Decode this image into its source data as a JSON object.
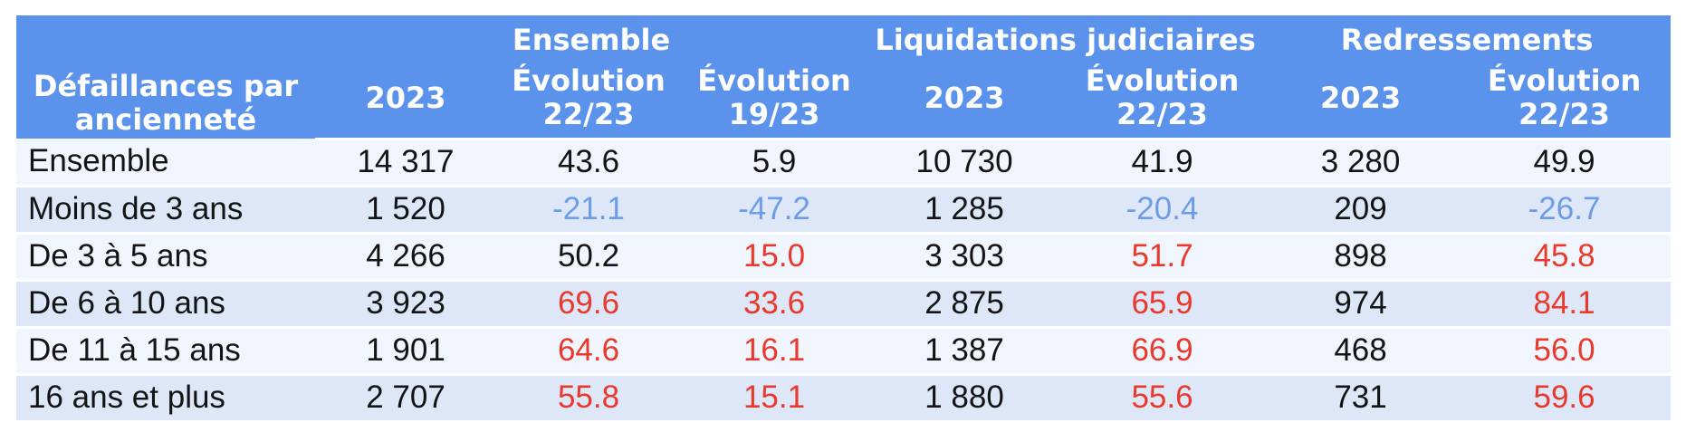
{
  "colors": {
    "header_bg": "#5B92EC",
    "row_light": "#F1F5FD",
    "row_shaded": "#DDE7F8",
    "k": "#141414",
    "r": "#E8392C",
    "b": "#6D9CE6"
  },
  "table": {
    "corner_header": "Défaillances par\nancienneté",
    "groups": [
      {
        "label": "Ensemble"
      },
      {
        "label": "Liquidations judiciaires"
      },
      {
        "label": "Redressements"
      }
    ],
    "columns": [
      "2023",
      "Évolution\n22/23",
      "Évolution\n19/23",
      "2023",
      "Évolution\n22/23",
      "2023",
      "Évolution\n22/23"
    ],
    "rows": [
      {
        "label": "Ensemble",
        "cells": [
          {
            "v": "14 317",
            "c": "k"
          },
          {
            "v": "43.6",
            "c": "k"
          },
          {
            "v": "5.9",
            "c": "k"
          },
          {
            "v": "10 730",
            "c": "k"
          },
          {
            "v": "41.9",
            "c": "k"
          },
          {
            "v": "3 280",
            "c": "k"
          },
          {
            "v": "49.9",
            "c": "k"
          }
        ]
      },
      {
        "label": "Moins de 3 ans",
        "cells": [
          {
            "v": "1 520",
            "c": "k"
          },
          {
            "v": "-21.1",
            "c": "b"
          },
          {
            "v": "-47.2",
            "c": "b"
          },
          {
            "v": "1 285",
            "c": "k"
          },
          {
            "v": "-20.4",
            "c": "b"
          },
          {
            "v": "209",
            "c": "k"
          },
          {
            "v": "-26.7",
            "c": "b"
          }
        ]
      },
      {
        "label": "De 3 à 5 ans",
        "cells": [
          {
            "v": "4 266",
            "c": "k"
          },
          {
            "v": "50.2",
            "c": "k"
          },
          {
            "v": "15.0",
            "c": "r"
          },
          {
            "v": "3 303",
            "c": "k"
          },
          {
            "v": "51.7",
            "c": "r"
          },
          {
            "v": "898",
            "c": "k"
          },
          {
            "v": "45.8",
            "c": "r"
          }
        ]
      },
      {
        "label": "De 6 à 10 ans",
        "cells": [
          {
            "v": "3 923",
            "c": "k"
          },
          {
            "v": "69.6",
            "c": "r"
          },
          {
            "v": "33.6",
            "c": "r"
          },
          {
            "v": "2 875",
            "c": "k"
          },
          {
            "v": "65.9",
            "c": "r"
          },
          {
            "v": "974",
            "c": "k"
          },
          {
            "v": "84.1",
            "c": "r"
          }
        ]
      },
      {
        "label": "De 11 à 15 ans",
        "cells": [
          {
            "v": "1 901",
            "c": "k"
          },
          {
            "v": "64.6",
            "c": "r"
          },
          {
            "v": "16.1",
            "c": "r"
          },
          {
            "v": "1 387",
            "c": "k"
          },
          {
            "v": "66.9",
            "c": "r"
          },
          {
            "v": "468",
            "c": "k"
          },
          {
            "v": "56.0",
            "c": "r"
          }
        ]
      },
      {
        "label": "16 ans et plus",
        "cells": [
          {
            "v": "2 707",
            "c": "k"
          },
          {
            "v": "55.8",
            "c": "r"
          },
          {
            "v": "15.1",
            "c": "r"
          },
          {
            "v": "1 880",
            "c": "k"
          },
          {
            "v": "55.6",
            "c": "r"
          },
          {
            "v": "731",
            "c": "k"
          },
          {
            "v": "59.6",
            "c": "r"
          }
        ]
      }
    ]
  },
  "chart_data": {
    "type": "table",
    "title": "Défaillances par ancienneté",
    "column_groups": [
      {
        "label": "Ensemble",
        "columns": [
          "2023",
          "Évolution 22/23",
          "Évolution 19/23"
        ]
      },
      {
        "label": "Liquidations judiciaires",
        "columns": [
          "2023",
          "Évolution 22/23"
        ]
      },
      {
        "label": "Redressements",
        "columns": [
          "2023",
          "Évolution 22/23"
        ]
      }
    ],
    "columns": [
      "Défaillances par ancienneté",
      "Ensemble 2023",
      "Ensemble Évolution 22/23",
      "Ensemble Évolution 19/23",
      "Liquidations judiciaires 2023",
      "Liquidations judiciaires Évolution 22/23",
      "Redressements 2023",
      "Redressements Évolution 22/23"
    ],
    "rows": [
      [
        "Ensemble",
        14317,
        43.6,
        5.9,
        10730,
        41.9,
        3280,
        49.9
      ],
      [
        "Moins de 3 ans",
        1520,
        -21.1,
        -47.2,
        1285,
        -20.4,
        209,
        -26.7
      ],
      [
        "De 3 à 5 ans",
        4266,
        50.2,
        15.0,
        3303,
        51.7,
        898,
        45.8
      ],
      [
        "De 6 à 10 ans",
        3923,
        69.6,
        33.6,
        2875,
        65.9,
        974,
        84.1
      ],
      [
        "De 11 à 15 ans",
        1901,
        64.6,
        16.1,
        1387,
        66.9,
        468,
        56.0
      ],
      [
        "16 ans et plus",
        2707,
        55.8,
        15.1,
        1880,
        55.6,
        731,
        59.6
      ]
    ],
    "notes": "Values in Évolution columns are percentages; negative values shown in blue, strong increases in red."
  }
}
